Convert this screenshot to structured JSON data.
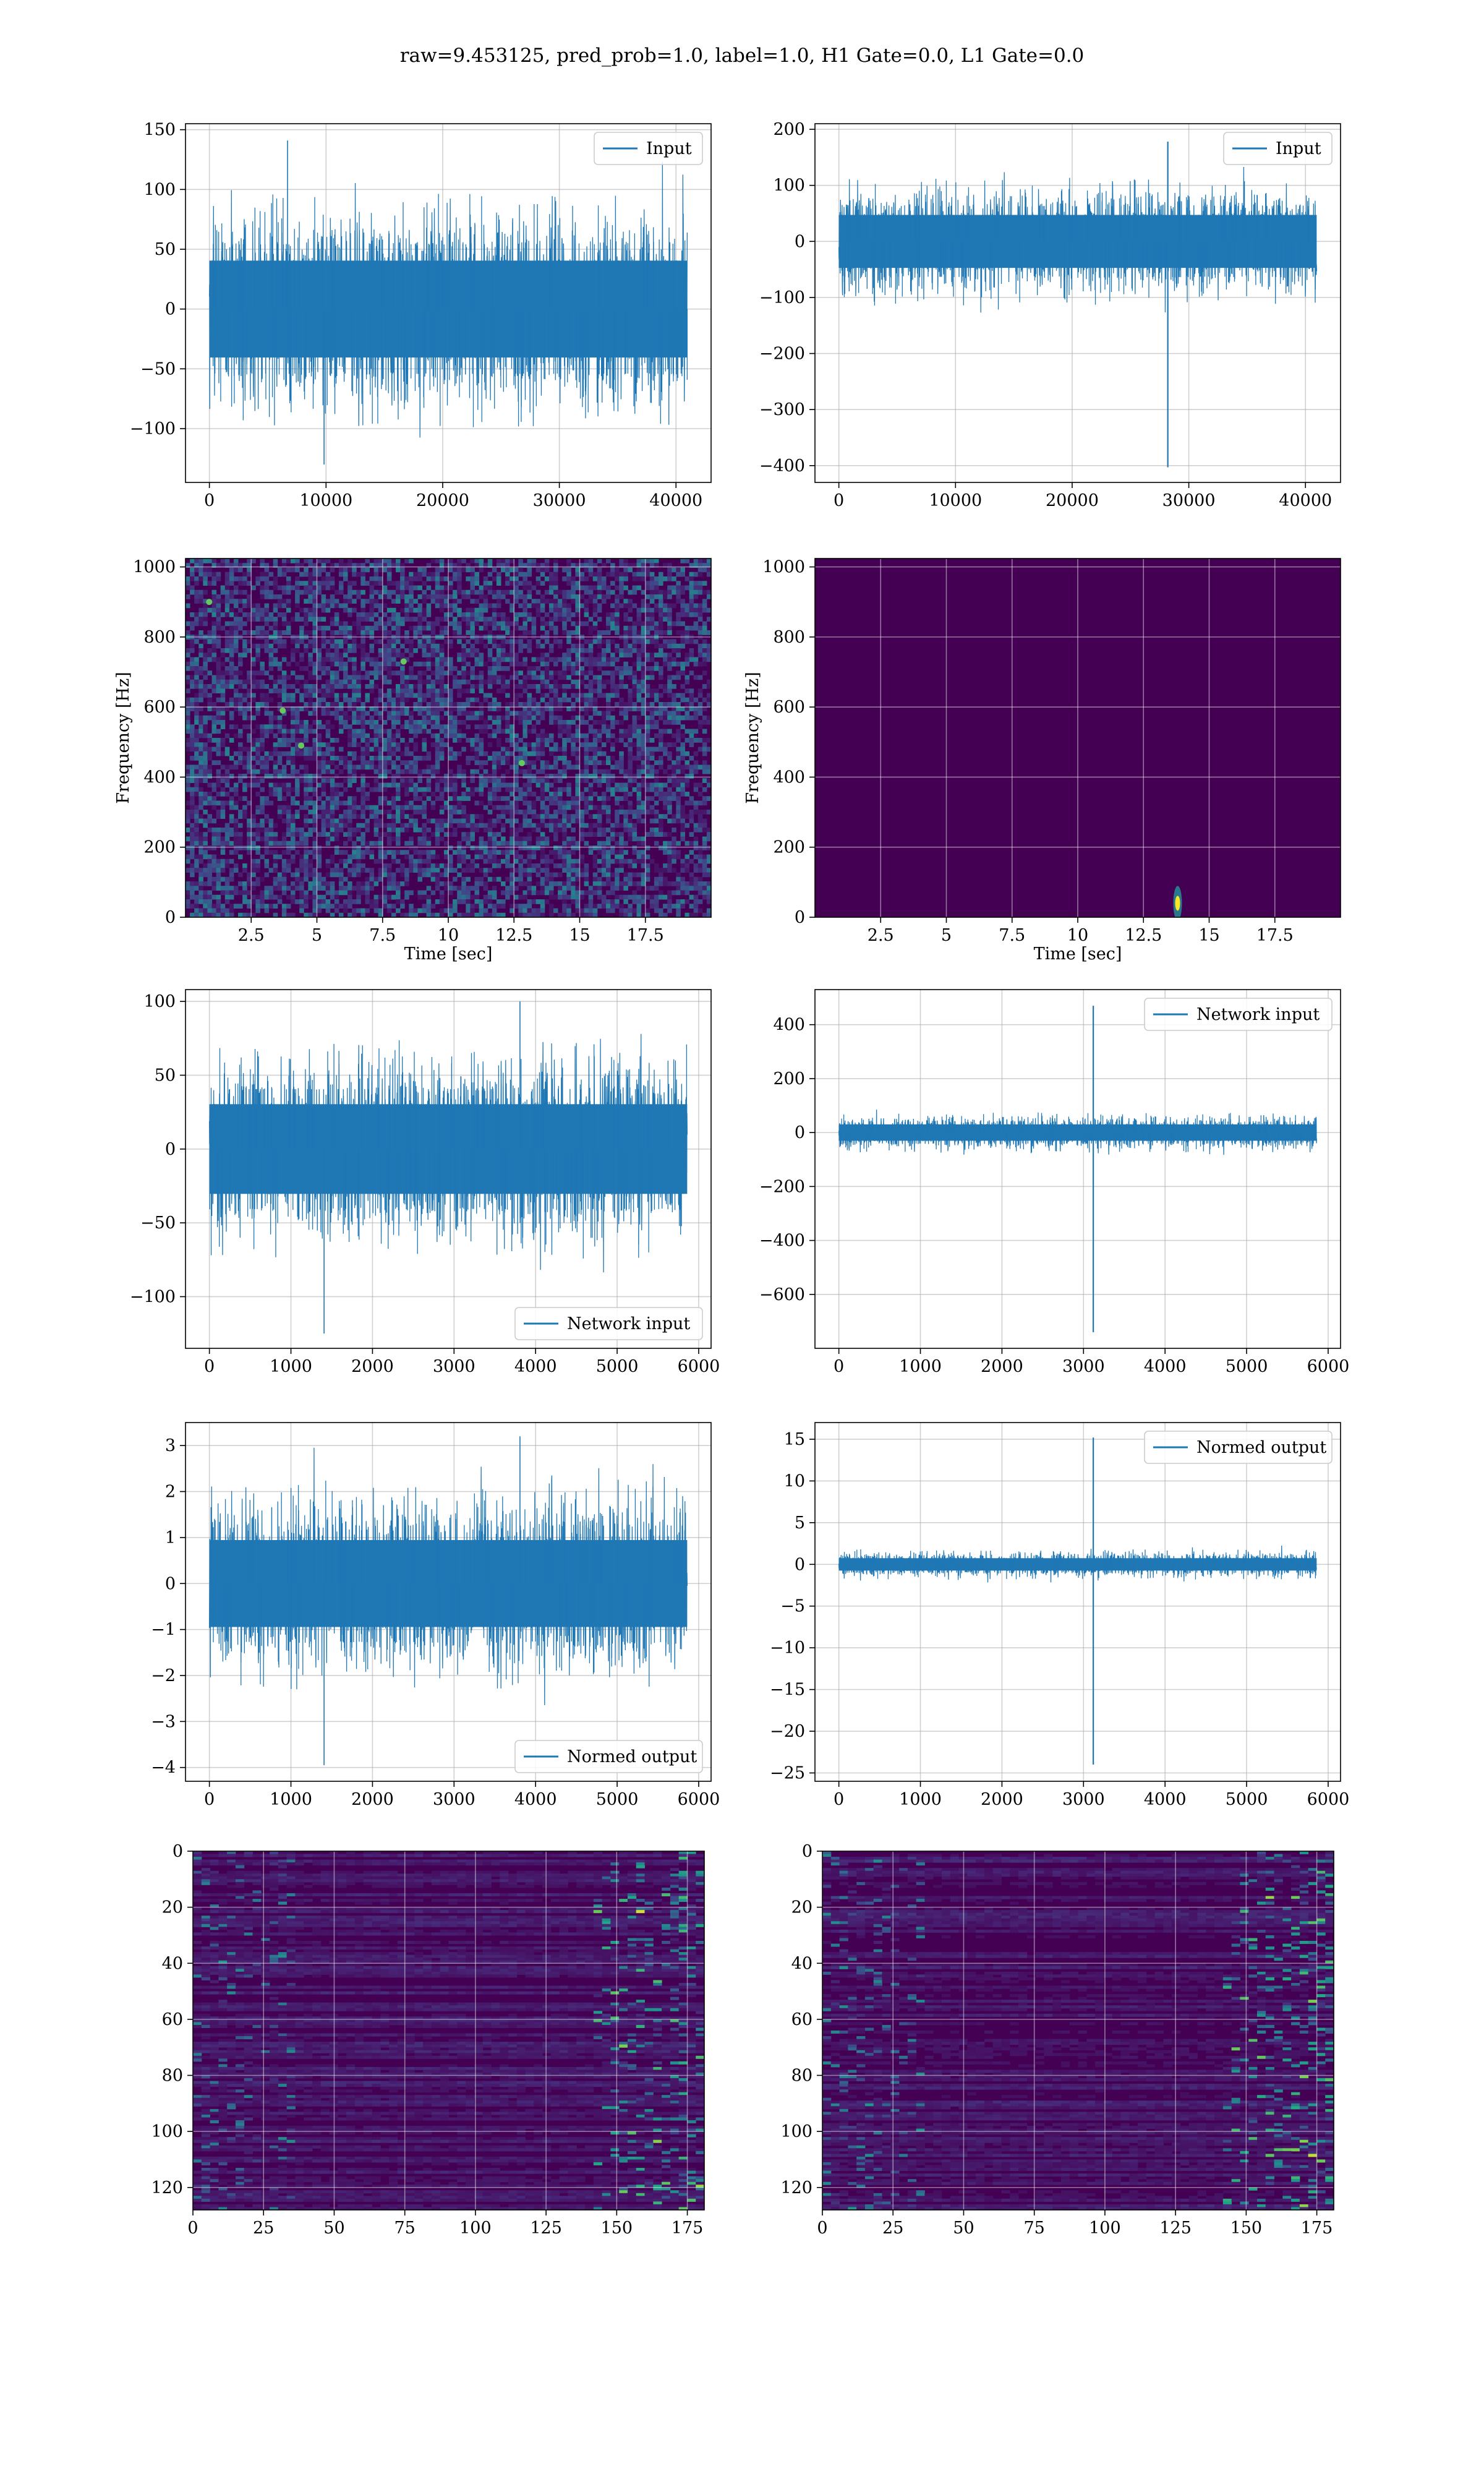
{
  "figure": {
    "title": "raw=9.453125, pred_prob=1.0, label=1.0, H1 Gate=0.0, L1 Gate=0.0"
  },
  "colors": {
    "line": "#1f77b4",
    "grid": "#b0b0b0",
    "axes": "#000000",
    "viridis_dark": "#440154",
    "viridis_bright": "#fde725"
  },
  "chart_data": [
    {
      "id": "h1-input",
      "type": "line",
      "series": [
        {
          "name": "Input",
          "n": 40960,
          "amplitude": 60,
          "peak_x": 6700,
          "peak_y": 141,
          "min_y": -130
        }
      ],
      "xlim": [
        -2048,
        43008
      ],
      "ylim": [
        -145,
        155
      ],
      "xticks": [
        0,
        10000,
        20000,
        30000,
        40000
      ],
      "yticks": [
        -100,
        -50,
        0,
        50,
        100,
        150
      ],
      "legend": "top-right",
      "grid": true
    },
    {
      "id": "l1-input",
      "type": "line",
      "series": [
        {
          "name": "Input",
          "n": 40960,
          "amplitude": 70,
          "spike_x": 28200,
          "spike_max": 178,
          "spike_min": -403
        }
      ],
      "xlim": [
        -2048,
        43008
      ],
      "ylim": [
        -430,
        210
      ],
      "xticks": [
        0,
        10000,
        20000,
        30000,
        40000
      ],
      "yticks": [
        -400,
        -300,
        -200,
        -100,
        0,
        100,
        200
      ],
      "legend": "top-right",
      "grid": true
    },
    {
      "id": "h1-spectrogram",
      "type": "heatmap",
      "colormap": "viridis",
      "xlabel": "Time [sec]",
      "ylabel": "Frequency [Hz]",
      "xlim": [
        0,
        20
      ],
      "ylim": [
        0,
        1024
      ],
      "xticks": [
        2.5,
        5.0,
        7.5,
        10.0,
        12.5,
        15.0,
        17.5
      ],
      "yticks": [
        0,
        200,
        400,
        600,
        800,
        1000
      ],
      "grid": true
    },
    {
      "id": "l1-spectrogram",
      "type": "heatmap",
      "colormap": "viridis",
      "xlabel": "Time [sec]",
      "ylabel": "Frequency [Hz]",
      "xlim": [
        0,
        20
      ],
      "ylim": [
        0,
        1024
      ],
      "xticks": [
        2.5,
        5.0,
        7.5,
        10.0,
        12.5,
        15.0,
        17.5
      ],
      "yticks": [
        0,
        200,
        400,
        600,
        800,
        1000
      ],
      "hot_spot": {
        "time": 13.8,
        "freq": 40
      },
      "grid": true
    },
    {
      "id": "h1-network-input",
      "type": "line",
      "series": [
        {
          "name": "Network input",
          "n": 5859,
          "amplitude": 45,
          "max_y": 100,
          "min_y": -125
        }
      ],
      "xlim": [
        -293,
        6152
      ],
      "ylim": [
        -135,
        108
      ],
      "xticks": [
        0,
        1000,
        2000,
        3000,
        4000,
        5000,
        6000
      ],
      "yticks": [
        -100,
        -50,
        0,
        50,
        100
      ],
      "legend": "bottom-right",
      "grid": true
    },
    {
      "id": "l1-network-input",
      "type": "line",
      "series": [
        {
          "name": "Network input",
          "n": 5859,
          "amplitude": 45,
          "spike_x": 3120,
          "spike_max": 470,
          "spike_min": -740
        }
      ],
      "xlim": [
        -293,
        6152
      ],
      "ylim": [
        -800,
        530
      ],
      "xticks": [
        0,
        1000,
        2000,
        3000,
        4000,
        5000,
        6000
      ],
      "yticks": [
        -600,
        -400,
        -200,
        0,
        200,
        400
      ],
      "legend": "top-right",
      "grid": true
    },
    {
      "id": "h1-normed-output",
      "type": "line",
      "series": [
        {
          "name": "Normed output",
          "n": 5859,
          "amplitude": 1.4,
          "max_y": 3.2,
          "min_y": -3.95
        }
      ],
      "xlim": [
        -293,
        6152
      ],
      "ylim": [
        -4.3,
        3.5
      ],
      "xticks": [
        0,
        1000,
        2000,
        3000,
        4000,
        5000,
        6000
      ],
      "yticks": [
        -4,
        -3,
        -2,
        -1,
        0,
        1,
        2,
        3
      ],
      "legend": "bottom-right",
      "grid": true
    },
    {
      "id": "l1-normed-output",
      "type": "line",
      "series": [
        {
          "name": "Normed output",
          "n": 5859,
          "amplitude": 1.1,
          "spike_x": 3120,
          "spike_max": 15.2,
          "spike_min": -24
        }
      ],
      "xlim": [
        -293,
        6152
      ],
      "ylim": [
        -26,
        17
      ],
      "xticks": [
        0,
        1000,
        2000,
        3000,
        4000,
        5000,
        6000
      ],
      "yticks": [
        -25,
        -20,
        -15,
        -10,
        -5,
        0,
        5,
        10,
        15
      ],
      "legend": "top-right",
      "grid": true
    },
    {
      "id": "h1-feature-map",
      "type": "heatmap",
      "colormap": "viridis",
      "xlim": [
        0,
        181
      ],
      "ylim": [
        128,
        0
      ],
      "xticks": [
        0,
        25,
        50,
        75,
        100,
        125,
        150,
        175
      ],
      "yticks": [
        0,
        20,
        40,
        60,
        80,
        100,
        120
      ],
      "grid": true
    },
    {
      "id": "l1-feature-map",
      "type": "heatmap",
      "colormap": "viridis",
      "xlim": [
        0,
        181
      ],
      "ylim": [
        128,
        0
      ],
      "xticks": [
        0,
        25,
        50,
        75,
        100,
        125,
        150,
        175
      ],
      "yticks": [
        0,
        20,
        40,
        60,
        80,
        100,
        120
      ],
      "grid": true
    }
  ]
}
